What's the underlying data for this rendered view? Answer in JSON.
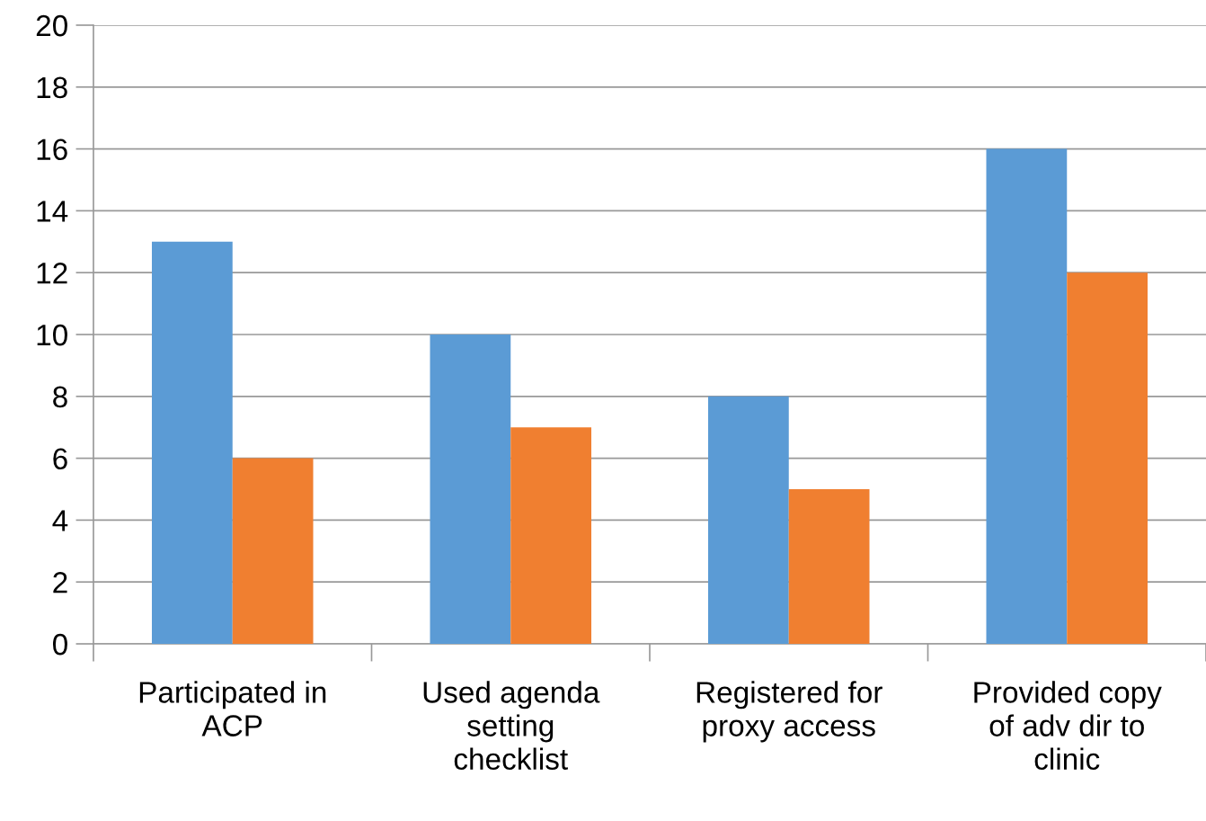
{
  "chart_data": {
    "type": "bar",
    "categories": [
      "Participated in\nACP",
      "Used agenda\nsetting\nchecklist",
      "Registered for\nproxy access",
      "Provided copy\nof adv dir to\nclinic"
    ],
    "series": [
      {
        "color": "#5b9bd5",
        "values": [
          13,
          10,
          8,
          16
        ]
      },
      {
        "color": "#f07f30",
        "values": [
          6,
          7,
          5,
          12
        ]
      }
    ],
    "ylim": [
      0,
      20
    ],
    "yticks": [
      0,
      2,
      4,
      6,
      8,
      10,
      12,
      14,
      16,
      18,
      20
    ],
    "grid": "y"
  }
}
